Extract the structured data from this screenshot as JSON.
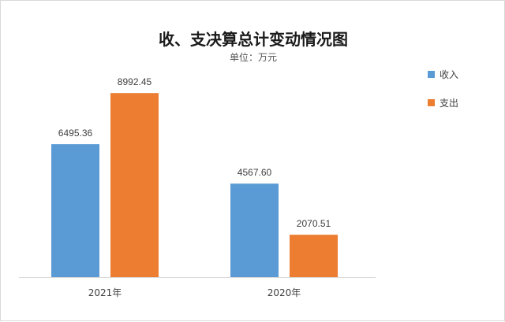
{
  "chart_data": {
    "type": "bar",
    "title": "收、支决算总计变动情况图",
    "subtitle": "单位：万元",
    "categories": [
      "2021年",
      "2020年"
    ],
    "series": [
      {
        "name": "收入",
        "color": "#5b9bd5",
        "values": [
          6495.36,
          4567.6
        ],
        "labels": [
          "6495.36",
          "4567.60"
        ]
      },
      {
        "name": "支出",
        "color": "#ed7d31",
        "values": [
          8992.45,
          2070.51
        ],
        "labels": [
          "8992.45",
          "2070.51"
        ]
      }
    ],
    "ylim": [
      0,
      10000
    ],
    "grid": false,
    "legend_position": "right"
  }
}
